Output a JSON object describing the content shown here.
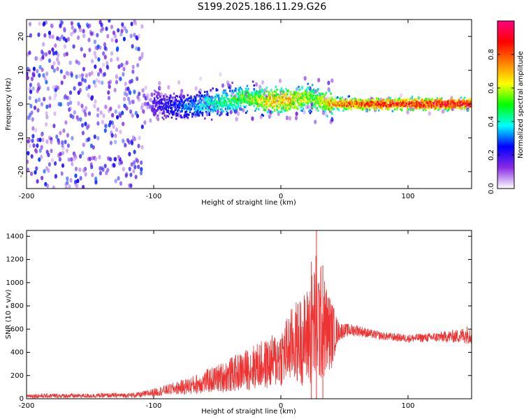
{
  "figure_title": "S199.2025.186.11.29.G26",
  "chart_data": [
    {
      "type": "heatmap",
      "xlabel": "Height of straight line (km)",
      "ylabel": "Frequency (Hz)",
      "xlim": [
        -200,
        150
      ],
      "ylim": [
        -25,
        25
      ],
      "xticks": [
        -200,
        -100,
        0,
        100
      ],
      "yticks": [
        -20,
        -10,
        0,
        10,
        20
      ],
      "grid": false,
      "colorbar": {
        "label": "Normalized spectral amplitude",
        "range": [
          0,
          1
        ],
        "ticks": [
          0.0,
          0.2,
          0.4,
          0.6,
          0.8
        ],
        "tick_labels": [
          "0.0",
          "0.2",
          "0.4",
          "0.6",
          "0.8"
        ],
        "colors": [
          "#ffffff",
          "#8a2be2",
          "#0000ff",
          "#00ffff",
          "#00ff00",
          "#ffff00",
          "#ff8000",
          "#ff0000",
          "#ff0080"
        ]
      },
      "ridge": {
        "x": [
          -100,
          -80,
          -60,
          -40,
          -30,
          -20,
          -10,
          0,
          10,
          20,
          30,
          40,
          50,
          60,
          80,
          100,
          120,
          150
        ],
        "y": [
          0,
          -1,
          0,
          1,
          2,
          1,
          1,
          1,
          1,
          2,
          1,
          0,
          0,
          0,
          0,
          0,
          0,
          0
        ],
        "amplitude": [
          0.2,
          0.3,
          0.4,
          0.5,
          0.55,
          0.6,
          0.7,
          0.75,
          0.7,
          0.6,
          0.6,
          0.75,
          0.85,
          0.85,
          0.9,
          0.92,
          0.95,
          0.95
        ]
      },
      "noise_region": {
        "x_range": [
          -200,
          -110
        ],
        "amplitude": 0.25
      }
    },
    {
      "type": "line",
      "xlabel": "Height of straight line (km)",
      "ylabel": "SNR (10 * v/v)",
      "xlim": [
        -200,
        150
      ],
      "ylim": [
        0,
        1450
      ],
      "xticks": [
        -200,
        -100,
        0,
        100
      ],
      "yticks": [
        0,
        200,
        400,
        600,
        800,
        1000,
        1200,
        1400
      ],
      "grid": false,
      "series": [
        {
          "color": "#ee3333",
          "x": [
            -200,
            -180,
            -160,
            -140,
            -120,
            -110,
            -100,
            -90,
            -80,
            -70,
            -60,
            -50,
            -40,
            -30,
            -20,
            -10,
            0,
            5,
            10,
            15,
            20,
            25,
            28,
            30,
            35,
            40,
            45,
            50,
            60,
            70,
            80,
            100,
            120,
            140,
            150
          ],
          "y": [
            25,
            25,
            25,
            28,
            30,
            35,
            55,
            75,
            95,
            115,
            145,
            175,
            205,
            240,
            280,
            300,
            360,
            420,
            480,
            500,
            520,
            620,
            700,
            660,
            600,
            560,
            580,
            590,
            590,
            560,
            540,
            520,
            530,
            540,
            560
          ],
          "spread": [
            20,
            20,
            20,
            20,
            20,
            25,
            35,
            45,
            60,
            80,
            100,
            120,
            150,
            170,
            200,
            220,
            260,
            300,
            340,
            380,
            420,
            520,
            600,
            560,
            420,
            300,
            90,
            60,
            50,
            40,
            35,
            35,
            40,
            60,
            90
          ]
        }
      ],
      "peaks": [
        {
          "x": 28,
          "y": 1450
        },
        {
          "x": 24,
          "y": 1180
        },
        {
          "x": 33,
          "y": 1150
        }
      ]
    }
  ]
}
